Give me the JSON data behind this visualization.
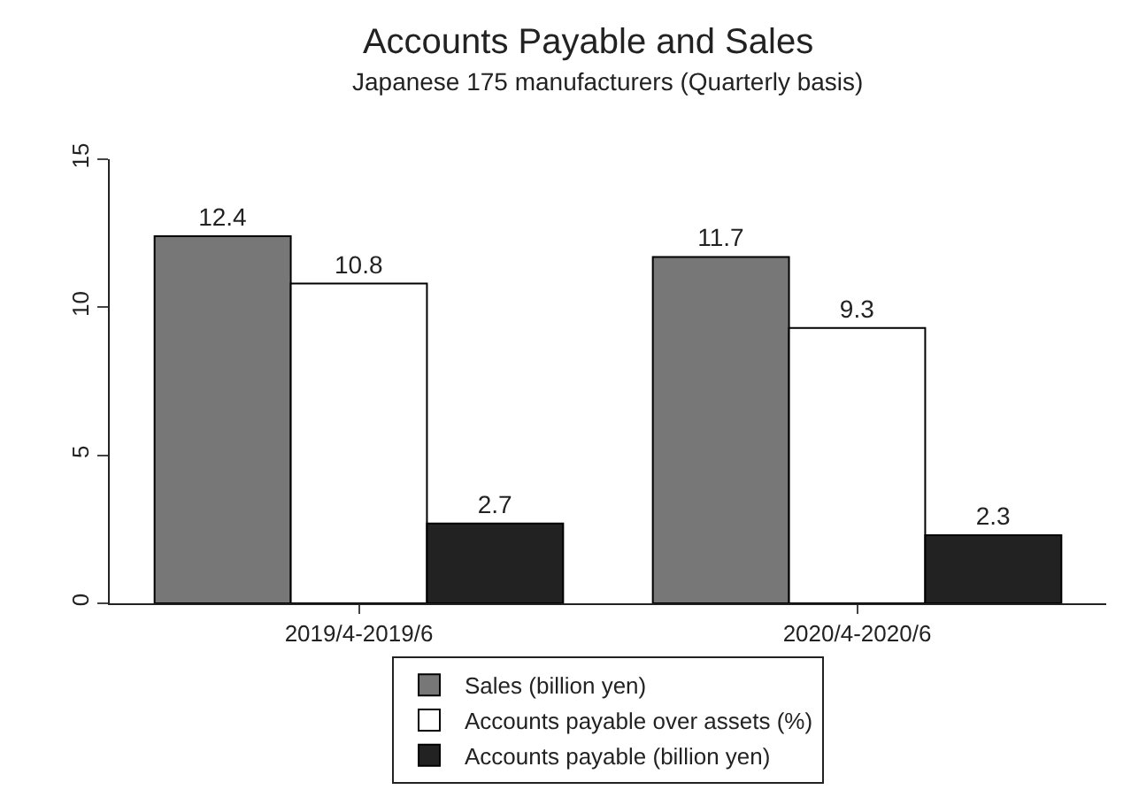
{
  "chart_data": {
    "type": "bar",
    "title": "Accounts Payable and Sales",
    "subtitle": "Japanese 175 manufacturers (Quarterly basis)",
    "categories": [
      "2019/4-2019/6",
      "2020/4-2020/6"
    ],
    "series": [
      {
        "name": "Sales (billion yen)",
        "color": "#777777",
        "values": [
          12.4,
          11.7
        ]
      },
      {
        "name": "Accounts payable over assets (%)",
        "color": "#ffffff",
        "values": [
          10.8,
          9.3
        ]
      },
      {
        "name": "Accounts payable (billion yen)",
        "color": "#222222",
        "values": [
          2.7,
          2.3
        ]
      }
    ],
    "ylim": [
      0,
      15
    ],
    "yticks": [
      0,
      5,
      10,
      15
    ],
    "grid": false,
    "legend": "bottom",
    "data_labels": true
  }
}
